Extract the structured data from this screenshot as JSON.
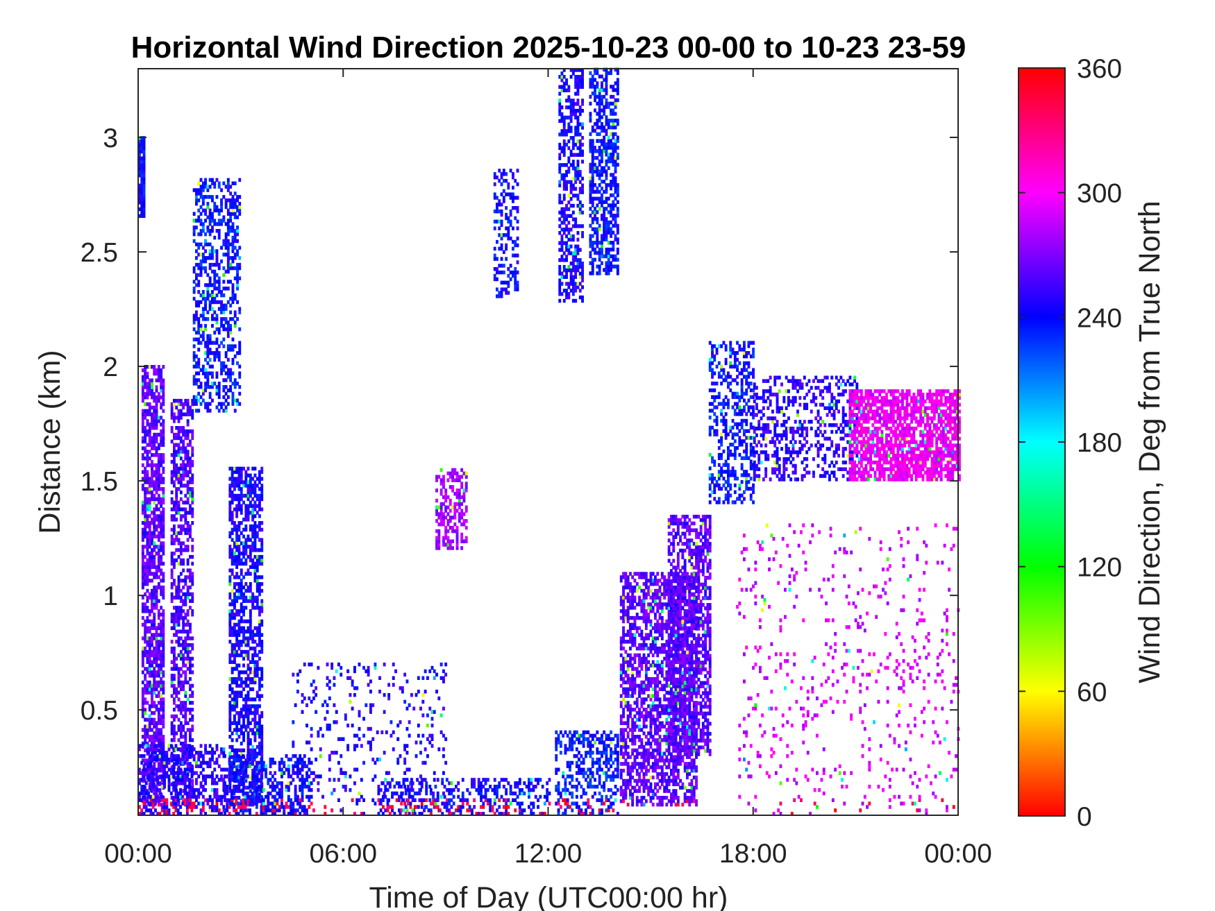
{
  "chart_data": {
    "type": "heatmap",
    "title": "Horizontal Wind Direction 2025-10-23 00-00 to 10-23 23-59",
    "xlabel": "Time of Day (UTC00:00 hr)",
    "ylabel": "Distance (km)",
    "x_unit": "hours",
    "xlim": [
      0,
      24
    ],
    "ylim": [
      0.04,
      3.3
    ],
    "x_ticks": [
      0,
      6,
      12,
      18,
      24
    ],
    "x_tick_labels": [
      "00:00",
      "06:00",
      "12:00",
      "18:00",
      "00:00"
    ],
    "y_ticks": [
      0.5,
      1,
      1.5,
      2,
      2.5,
      3
    ],
    "y_tick_labels": [
      "0.5",
      "1",
      "1.5",
      "2",
      "2.5",
      "3"
    ],
    "colorbar": {
      "label": "Wind Direction, Deg from True North",
      "range": [
        0,
        360
      ],
      "ticks": [
        0,
        60,
        120,
        180,
        240,
        300,
        360
      ],
      "tick_labels": [
        "0",
        "60",
        "120",
        "180",
        "240",
        "300",
        "360"
      ],
      "colormap": "hsv"
    },
    "regions": [
      {
        "name": "blue column 00:00",
        "x": [
          0.0,
          0.15
        ],
        "y": [
          2.65,
          3.0
        ],
        "value": 240,
        "density": 0.85
      },
      {
        "name": "early purple column",
        "x": [
          0.1,
          0.75
        ],
        "y": [
          0.08,
          2.0
        ],
        "value": 262,
        "density": 0.72
      },
      {
        "name": "second early column",
        "x": [
          0.95,
          1.55
        ],
        "y": [
          0.08,
          1.85
        ],
        "value": 258,
        "density": 0.55
      },
      {
        "name": "low mixed band 00-02",
        "x": [
          0.0,
          2.5
        ],
        "y": [
          0.04,
          0.35
        ],
        "value": 250,
        "density": 0.55
      },
      {
        "name": "rising blue plume",
        "x": [
          1.6,
          3.0
        ],
        "y": [
          1.8,
          2.82
        ],
        "value": 238,
        "density": 0.45
      },
      {
        "name": "blue column 03:00",
        "x": [
          2.65,
          3.6
        ],
        "y": [
          0.08,
          1.55
        ],
        "value": 245,
        "density": 0.6
      },
      {
        "name": "low band 03-05",
        "x": [
          2.5,
          5.0
        ],
        "y": [
          0.04,
          0.3
        ],
        "value": 242,
        "density": 0.45
      },
      {
        "name": "sparse 04-08",
        "x": [
          4.5,
          9.0
        ],
        "y": [
          0.04,
          0.7
        ],
        "value": 245,
        "density": 0.12
      },
      {
        "name": "low band 07-12",
        "x": [
          7.0,
          12.0
        ],
        "y": [
          0.04,
          0.2
        ],
        "value": 242,
        "density": 0.42
      },
      {
        "name": "small purple patch 09:00",
        "x": [
          8.7,
          9.6
        ],
        "y": [
          1.2,
          1.55
        ],
        "value": 278,
        "density": 0.45
      },
      {
        "name": "cluster 10:30",
        "x": [
          10.4,
          11.1
        ],
        "y": [
          2.3,
          2.85
        ],
        "value": 240,
        "density": 0.35
      },
      {
        "name": "upper column 12:30",
        "x": [
          12.3,
          13.0
        ],
        "y": [
          2.28,
          3.3
        ],
        "value": 245,
        "density": 0.55
      },
      {
        "name": "upper column 13:30",
        "x": [
          13.2,
          14.0
        ],
        "y": [
          2.4,
          3.3
        ],
        "value": 238,
        "density": 0.55
      },
      {
        "name": "rising low 12-14",
        "x": [
          12.2,
          14.0
        ],
        "y": [
          0.04,
          0.4
        ],
        "value": 235,
        "density": 0.4
      },
      {
        "name": "afternoon main column",
        "x": [
          14.1,
          16.3
        ],
        "y": [
          0.08,
          1.1
        ],
        "value": 262,
        "density": 0.6
      },
      {
        "name": "afternoon upper column",
        "x": [
          15.5,
          16.7
        ],
        "y": [
          0.3,
          1.35
        ],
        "value": 262,
        "density": 0.6
      },
      {
        "name": "evening rise",
        "x": [
          16.7,
          18.0
        ],
        "y": [
          1.4,
          2.1
        ],
        "value": 238,
        "density": 0.4
      },
      {
        "name": "evening band 18-21",
        "x": [
          18.0,
          21.0
        ],
        "y": [
          1.5,
          1.95
        ],
        "value": 250,
        "density": 0.35
      },
      {
        "name": "magenta layer 21-24",
        "x": [
          20.8,
          24.0
        ],
        "y": [
          1.5,
          1.9
        ],
        "value": 298,
        "density": 0.72
      },
      {
        "name": "sparse evening lows",
        "x": [
          17.5,
          24.0
        ],
        "y": [
          0.04,
          1.3
        ],
        "value": 290,
        "density": 0.06
      }
    ]
  }
}
